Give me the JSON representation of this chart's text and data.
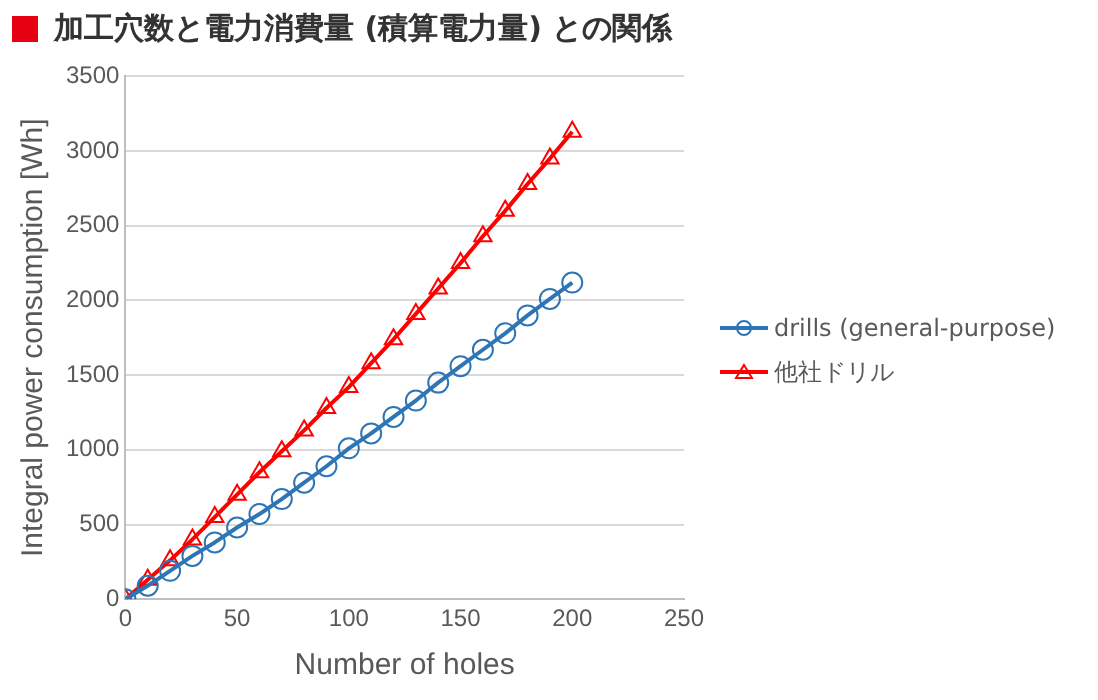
{
  "chart_data": {
    "type": "line",
    "title": "加工穴数と電力消費量 (積算電力量) との関係",
    "xlabel": "Number of holes",
    "ylabel": "Integral power consumption [Wh]",
    "xlim": [
      0,
      250
    ],
    "xticks": [
      0,
      50,
      100,
      150,
      200,
      250
    ],
    "ylim": [
      0,
      3500
    ],
    "yticks": [
      0,
      500,
      1000,
      1500,
      2000,
      2500,
      3000,
      3500
    ],
    "grid": "y",
    "legend": "right",
    "line_style": "solid",
    "series": [
      {
        "name": "drills (general-purpose)",
        "color": "#2e75b6",
        "marker": "circle",
        "x": [
          0,
          10,
          20,
          30,
          40,
          50,
          60,
          70,
          80,
          90,
          100,
          110,
          120,
          130,
          140,
          150,
          160,
          170,
          180,
          190,
          200
        ],
        "values": [
          0,
          90,
          190,
          290,
          380,
          480,
          570,
          670,
          780,
          890,
          1010,
          1110,
          1220,
          1330,
          1450,
          1560,
          1670,
          1780,
          1900,
          2010,
          2120
        ]
      },
      {
        "name": "他社ドリル",
        "color": "#ff0000",
        "marker": "triangle",
        "x": [
          0,
          10,
          20,
          30,
          40,
          50,
          60,
          70,
          80,
          90,
          100,
          110,
          120,
          130,
          140,
          150,
          160,
          170,
          180,
          190,
          200
        ],
        "values": [
          0,
          130,
          260,
          400,
          550,
          700,
          850,
          990,
          1130,
          1280,
          1420,
          1580,
          1740,
          1910,
          2080,
          2250,
          2430,
          2600,
          2780,
          2950,
          3130
        ]
      }
    ]
  }
}
